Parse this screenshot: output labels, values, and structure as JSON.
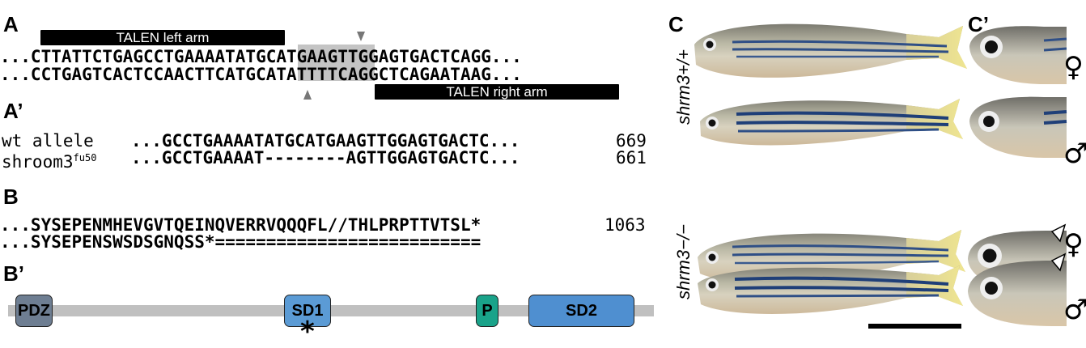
{
  "panels": {
    "A": "A",
    "A_prime": "A’",
    "B": "B",
    "B_prime": "B’",
    "C": "C",
    "C_prime": "C’"
  },
  "panelA": {
    "left_arm": "TALEN left arm",
    "right_arm": "TALEN right arm",
    "top_strand": "...CTTATTCTGAGCCTGAAAATATGCATGAAGTTGGAGTGACTCAGG...",
    "bottom_strand": "...CCTGAGTCACTCCAACTTCATGCATATTTTCAGGCTCAGAATAAG...",
    "highlight": "ATGCAT"
  },
  "panelA_prime": {
    "rows": [
      {
        "name": "wt allele",
        "superscript": "",
        "seq": "...GCCTGAAAATATGCATGAAGTTGGAGTGACTC...",
        "pos": "669"
      },
      {
        "name": "shroom3",
        "superscript": "fu50",
        "seq": "...GCCTGAAAAT--------AGTTGGAGTGACTC...",
        "pos": "661"
      }
    ]
  },
  "panelB": {
    "rows": [
      {
        "seq": "...SYSEPENMHEVGVTQEINQVERRVQQQFL//THLPRPTTVTSL*",
        "pos": "1063"
      },
      {
        "seq": "...SYSEPENSWSDSGNQSS*==========================",
        "pos": ""
      }
    ]
  },
  "panelB_prime": {
    "domains": [
      {
        "label": "PDZ",
        "color": "#6e7e92"
      },
      {
        "label": "SD1",
        "color": "#5b9bd5"
      },
      {
        "label": "P",
        "color": "#1aa38a"
      },
      {
        "label": "SD2",
        "color": "#4f8fd0"
      }
    ],
    "marker": "*",
    "bar_color": "#c0c0c0"
  },
  "panelC": {
    "genotypes": [
      {
        "label": "shrm3+/+"
      },
      {
        "label": "shrm3−/−"
      }
    ],
    "sexes": [
      "♀",
      "♂",
      "♀",
      "♂"
    ]
  }
}
